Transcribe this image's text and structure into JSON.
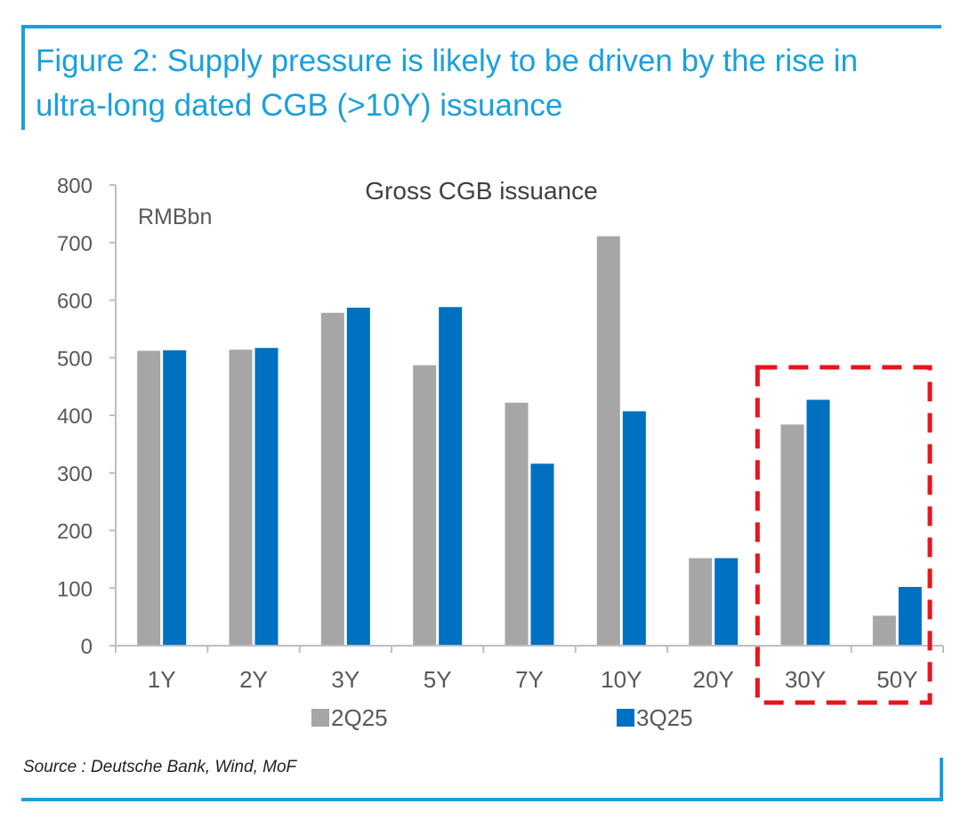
{
  "figure": {
    "title": "Figure 2: Supply pressure is likely to be driven by the rise in ultra-long dated CGB (>10Y) issuance",
    "source": "Source : Deutsche Bank, Wind, MoF"
  },
  "chart_data": {
    "type": "bar",
    "title": "Gross CGB issuance",
    "unit_label": "RMBbn",
    "xlabel": "",
    "ylabel": "",
    "ylim": [
      0,
      800
    ],
    "yticks": [
      0,
      100,
      200,
      300,
      400,
      500,
      600,
      700,
      800
    ],
    "categories": [
      "1Y",
      "2Y",
      "3Y",
      "5Y",
      "7Y",
      "10Y",
      "20Y",
      "30Y",
      "50Y"
    ],
    "series": [
      {
        "name": "2Q25",
        "color": "#a6a6a6",
        "values": [
          512,
          514,
          578,
          487,
          422,
          711,
          152,
          384,
          52
        ]
      },
      {
        "name": "3Q25",
        "color": "#0070c0",
        "values": [
          513,
          517,
          587,
          588,
          316,
          407,
          152,
          427,
          102
        ]
      }
    ],
    "grid": false,
    "legend_position": "bottom",
    "highlight": {
      "categories": [
        "30Y",
        "50Y"
      ],
      "color": "#e8141b",
      "style": "dashed"
    }
  }
}
